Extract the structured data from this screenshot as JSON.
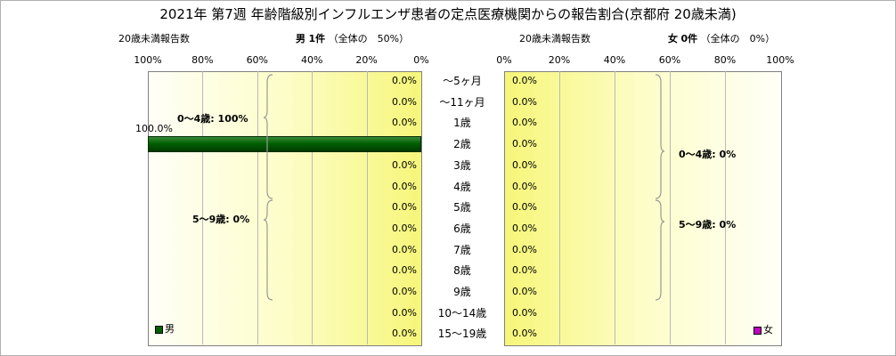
{
  "title": "2021年 第7週 年齢階級別インフルエンザ患者の定点医療機関からの報告割合(京都府 20歳未満)",
  "left_header": {
    "caption": "20歳未満報告数",
    "sex": "男",
    "count": "1件",
    "share": "（全体の　50%）"
  },
  "right_header": {
    "caption": "20歳未満報告数",
    "sex": "女",
    "count": "0件",
    "share": "（全体の　0%）"
  },
  "left_ticks": [
    "100%",
    "80%",
    "60%",
    "40%",
    "20%",
    "0%"
  ],
  "right_ticks": [
    "0%",
    "20%",
    "40%",
    "60%",
    "80%",
    "100%"
  ],
  "group_labels": {
    "male_0_4": "0～4歳: 100%",
    "male_5_9": "5～9歳: 0%",
    "female_0_4": "0～4歳: 0%",
    "female_5_9": "5～9歳: 0%"
  },
  "legend": {
    "male": "男",
    "female": "女"
  },
  "colors": {
    "male": "#006000",
    "female": "#c000c0"
  },
  "chart_data": {
    "type": "bar",
    "orientation": "horizontal",
    "categories": [
      "～5ヶ月",
      "～11ヶ月",
      "1歳",
      "2歳",
      "3歳",
      "4歳",
      "5歳",
      "6歳",
      "7歳",
      "8歳",
      "9歳",
      "10～14歳",
      "15～19歳"
    ],
    "series": [
      {
        "name": "男",
        "values": [
          0,
          0,
          0,
          100,
          0,
          0,
          0,
          0,
          0,
          0,
          0,
          0,
          0
        ],
        "labels": [
          "0.0%",
          "0.0%",
          "0.0%",
          "100.0%",
          "0.0%",
          "0.0%",
          "0.0%",
          "0.0%",
          "0.0%",
          "0.0%",
          "0.0%",
          "0.0%",
          "0.0%"
        ]
      },
      {
        "name": "女",
        "values": [
          0,
          0,
          0,
          0,
          0,
          0,
          0,
          0,
          0,
          0,
          0,
          0,
          0
        ],
        "labels": [
          "0.0%",
          "0.0%",
          "0.0%",
          "0.0%",
          "0.0%",
          "0.0%",
          "0.0%",
          "0.0%",
          "0.0%",
          "0.0%",
          "0.0%",
          "0.0%",
          "0.0%"
        ]
      }
    ],
    "xlim": [
      0,
      100
    ],
    "xlabel": "",
    "ylabel": "",
    "grid": true,
    "legend": "bottom-corners"
  }
}
